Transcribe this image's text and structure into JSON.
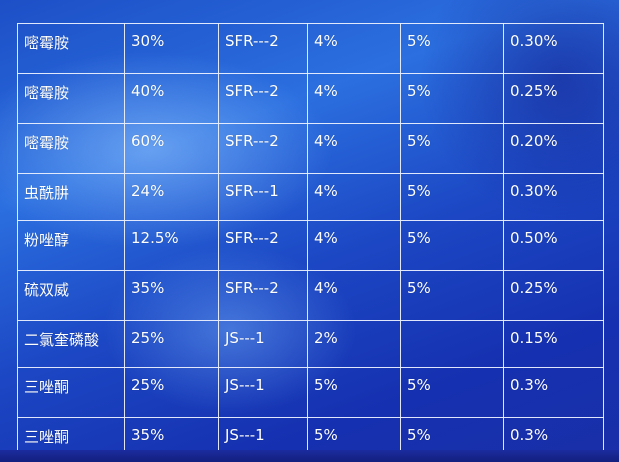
{
  "table": {
    "rows": [
      [
        "嘧霉胺",
        "30%",
        "SFR---2",
        "4%",
        "5%",
        "0.30%"
      ],
      [
        "嘧霉胺",
        "40%",
        "SFR---2",
        "4%",
        "5%",
        "0.25%"
      ],
      [
        "嘧霉胺",
        "60%",
        "SFR---2",
        "4%",
        "5%",
        "0.20%"
      ],
      [
        "虫酰肼",
        "24%",
        "SFR---1",
        "4%",
        "5%",
        "0.30%"
      ],
      [
        "粉唑醇",
        "12.5%",
        "SFR---2",
        "4%",
        "5%",
        "0.50%"
      ],
      [
        "硫双威",
        "35%",
        "SFR---2",
        "4%",
        "5%",
        "0.25%"
      ],
      [
        "二氯奎磷酸",
        "25%",
        "JS---1",
        "2%",
        "",
        "0.15%"
      ],
      [
        "三唑酮",
        "25%",
        "JS---1",
        "5%",
        "5%",
        "0.3%"
      ],
      [
        "三唑酮",
        "35%",
        "JS---1",
        "5%",
        "5%",
        "0.3%"
      ]
    ]
  }
}
